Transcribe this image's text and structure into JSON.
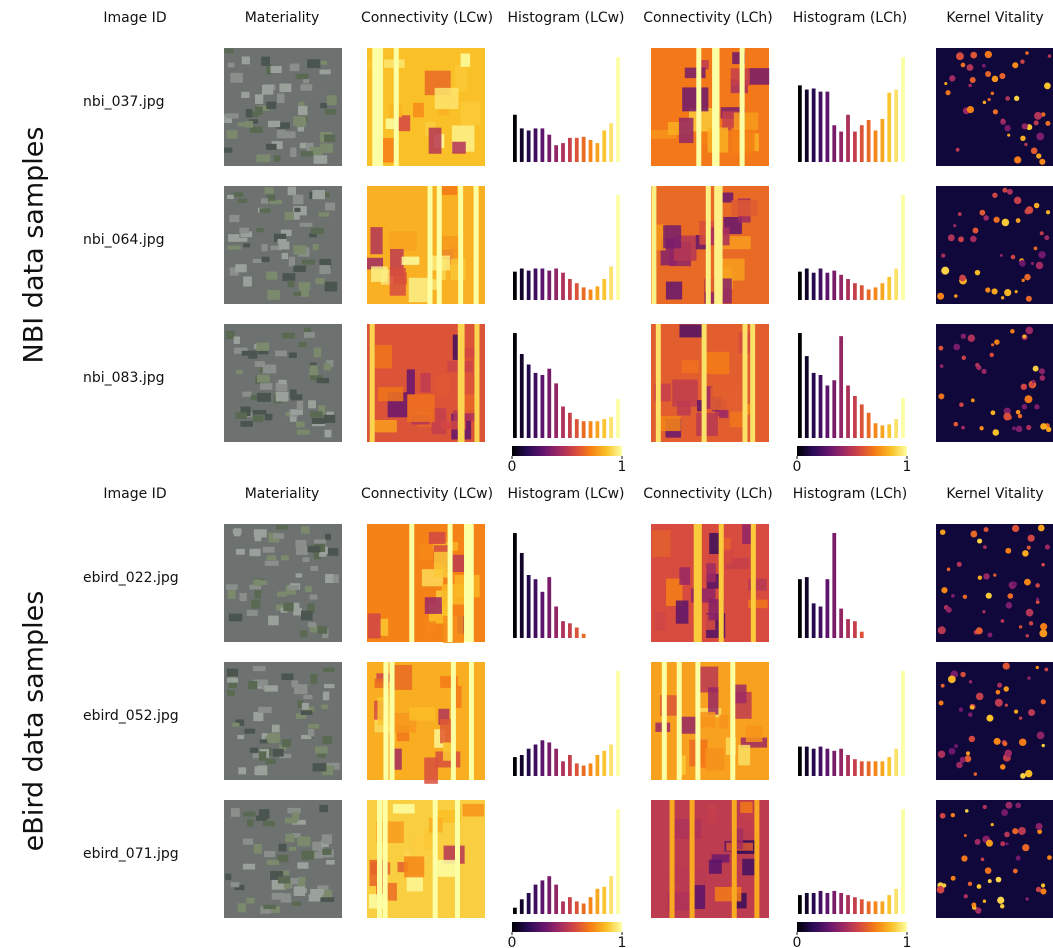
{
  "groups": [
    {
      "label": "NBI data samples",
      "columns": [
        "Image ID",
        "Materiality",
        "Connectivity (LCw)",
        "Histogram (LCw)",
        "Connectivity (LCh)",
        "Histogram (LCh)",
        "Kernel Vitality"
      ],
      "rows": [
        {
          "image_id": "nbi_037.jpg",
          "histogram_lcw": [
            45,
            32,
            30,
            32,
            32,
            26,
            16,
            18,
            23,
            23,
            24,
            21,
            18,
            30,
            37,
            100
          ],
          "histogram_lch": [
            73,
            69,
            70,
            67,
            67,
            35,
            29,
            45,
            29,
            35,
            40,
            30,
            41,
            66,
            69,
            100
          ]
        },
        {
          "image_id": "nbi_064.jpg",
          "histogram_lcw": [
            27,
            30,
            28,
            30,
            30,
            28,
            30,
            26,
            20,
            16,
            12,
            10,
            13,
            20,
            32,
            100
          ],
          "histogram_lch": [
            27,
            30,
            26,
            30,
            26,
            28,
            24,
            20,
            16,
            14,
            10,
            12,
            16,
            22,
            30,
            100
          ]
        },
        {
          "image_id": "nbi_083.jpg",
          "histogram_lcw": [
            100,
            80,
            70,
            62,
            60,
            66,
            52,
            30,
            24,
            18,
            16,
            16,
            16,
            18,
            20,
            37
          ],
          "histogram_lch": [
            100,
            78,
            62,
            60,
            50,
            55,
            97,
            50,
            40,
            32,
            24,
            14,
            12,
            13,
            18,
            38
          ]
        }
      ],
      "colorbar_ticks": [
        0,
        1
      ]
    },
    {
      "label": "eBird data samples",
      "columns": [
        "Image ID",
        "Materiality",
        "Connectivity (LCw)",
        "Histogram (LCw)",
        "Connectivity (LCh)",
        "Histogram (LCh)",
        "Kernel Vitality"
      ],
      "rows": [
        {
          "image_id": "ebird_022.jpg",
          "histogram_lcw": [
            100,
            81,
            60,
            56,
            44,
            58,
            30,
            16,
            14,
            10,
            4,
            0,
            0,
            0,
            0,
            0
          ],
          "histogram_lch": [
            56,
            58,
            33,
            30,
            56,
            100,
            28,
            18,
            16,
            6,
            0,
            0,
            0,
            0,
            0,
            0
          ]
        },
        {
          "image_id": "ebird_052.jpg",
          "histogram_lcw": [
            18,
            20,
            26,
            30,
            34,
            32,
            26,
            14,
            20,
            12,
            10,
            12,
            20,
            24,
            30,
            100
          ],
          "histogram_lch": [
            28,
            28,
            26,
            28,
            26,
            24,
            26,
            20,
            16,
            14,
            14,
            14,
            14,
            18,
            26,
            100
          ]
        },
        {
          "image_id": "ebird_071.jpg",
          "histogram_lcw": [
            6,
            14,
            20,
            28,
            32,
            36,
            28,
            12,
            16,
            12,
            10,
            16,
            24,
            26,
            36,
            100
          ],
          "histogram_lch": [
            18,
            20,
            20,
            22,
            20,
            22,
            20,
            18,
            16,
            14,
            12,
            12,
            12,
            18,
            24,
            100
          ]
        }
      ],
      "colorbar_ticks": [
        0,
        1
      ]
    }
  ]
}
